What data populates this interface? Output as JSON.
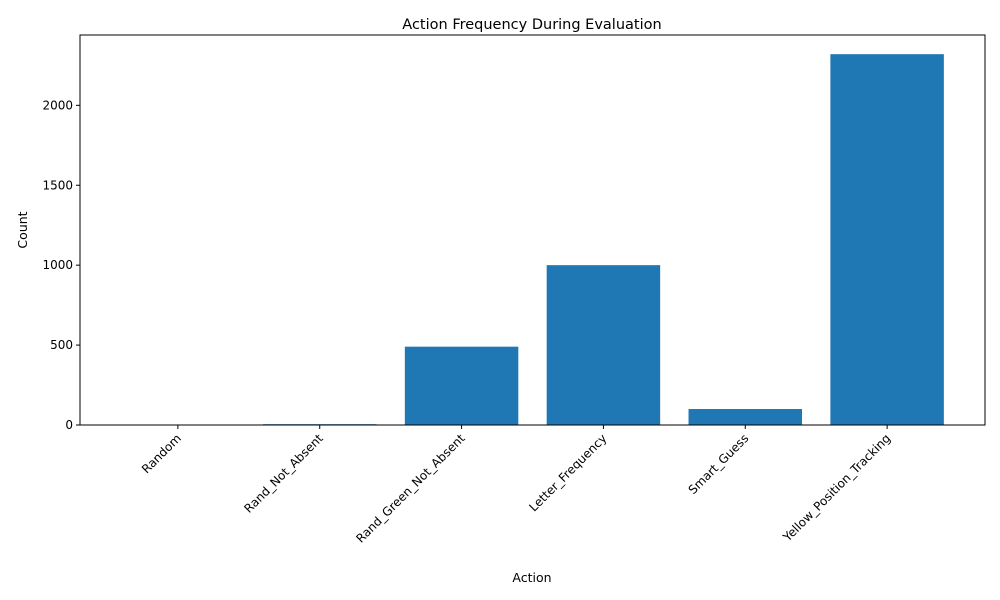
{
  "chart_data": {
    "type": "bar",
    "title": "Action Frequency During Evaluation",
    "xlabel": "Action",
    "ylabel": "Count",
    "categories": [
      "Random",
      "Rand_Not_Absent",
      "Rand_Green_Not_Absent",
      "Letter_Frequency",
      "Smart_Guess",
      "Yellow_Position_Tracking"
    ],
    "values": [
      0,
      5,
      490,
      1000,
      100,
      2320
    ],
    "ylim": [
      0,
      2440
    ],
    "yticks": [
      0,
      500,
      1000,
      1500,
      2000
    ],
    "bar_color": "#1f77b4",
    "grid": false,
    "legend": "none"
  }
}
